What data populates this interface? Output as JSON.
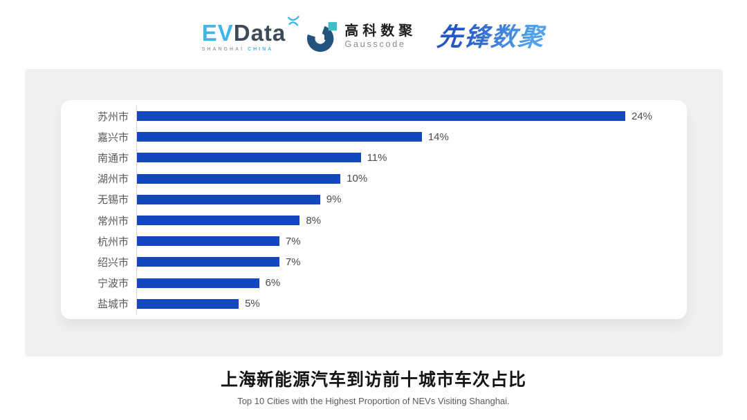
{
  "logos": {
    "evdata": {
      "name_part1": "EV",
      "name_part2": "Data",
      "tagline_left": "SHANGHAI",
      "tagline_right": "CHINA"
    },
    "gausscode": {
      "name_cn": "高科数聚",
      "name_en": "Gausscode"
    },
    "xianfeng": {
      "name": "先锋数聚"
    }
  },
  "chart_data": {
    "type": "bar",
    "orientation": "horizontal",
    "categories": [
      "苏州市",
      "嘉兴市",
      "南通市",
      "湖州市",
      "无锡市",
      "常州市",
      "杭州市",
      "绍兴市",
      "宁波市",
      "盐城市"
    ],
    "values": [
      24,
      14,
      11,
      10,
      9,
      8,
      7,
      7,
      6,
      5
    ],
    "value_labels": [
      "24%",
      "14%",
      "11%",
      "10%",
      "9%",
      "8%",
      "7%",
      "7%",
      "6%",
      "5%"
    ],
    "xlim": [
      0,
      24
    ],
    "grid": false,
    "legend": "none",
    "title": "上海新能源汽车到访前十城市车次占比",
    "subtitle": "Top 10 Cities with the Highest Proportion of  NEVs Visiting Shanghai.",
    "xlabel": "",
    "ylabel": ""
  },
  "footer": {
    "title": "上海新能源汽车到访前十城市车次占比",
    "subtitle": "Top 10 Cities with the Highest Proportion of  NEVs Visiting Shanghai."
  },
  "colors": {
    "bar": "#1347BD",
    "panel_bg": "#f0f0f0",
    "axis_line": "#d9d9d9",
    "evdata_blue": "#3FB6E8",
    "evdata_dark": "#3D4A57",
    "gauss_navy": "#24547E",
    "gauss_teal": "#3DBEC9",
    "xianfeng_blue_dark": "#2356C7",
    "xianfeng_blue_light": "#53A1E8"
  }
}
